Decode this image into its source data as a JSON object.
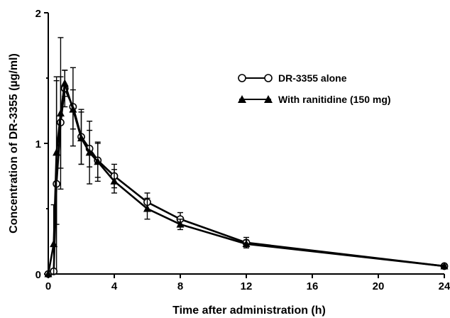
{
  "chart_data": {
    "type": "line",
    "title": "",
    "xlabel": "Time after administration (h)",
    "ylabel": "Concentration of DR-3355 (µg/ml)",
    "xlim": [
      0,
      24
    ],
    "ylim": [
      0,
      2
    ],
    "xticks": [
      0,
      4,
      8,
      12,
      16,
      20,
      24
    ],
    "xtick_labels": [
      "0",
      "4",
      "8",
      "12",
      "16",
      "20",
      "24"
    ],
    "yticks": [
      0,
      1,
      2
    ],
    "ytick_labels": [
      "0",
      "1",
      "2"
    ],
    "grid": false,
    "legend_position": "top-right",
    "series": [
      {
        "name": "DR-3355 alone",
        "marker": "open-circle",
        "x": [
          0,
          0.33,
          0.5,
          0.75,
          1,
          1.5,
          2,
          2.5,
          3,
          4,
          6,
          8,
          12,
          24
        ],
        "y": [
          0,
          0.02,
          0.69,
          1.16,
          1.42,
          1.28,
          1.05,
          0.96,
          0.87,
          0.75,
          0.55,
          0.42,
          0.24,
          0.06
        ],
        "error": [
          0,
          0.02,
          0.82,
          0.35,
          0.14,
          0.3,
          0.21,
          0.14,
          0.13,
          0.09,
          0.07,
          0.05,
          0.04,
          0.01
        ]
      },
      {
        "name": "With ranitidine (150 mg)",
        "marker": "filled-triangle",
        "x": [
          0,
          0.33,
          0.5,
          0.75,
          1,
          1.5,
          2,
          2.5,
          3,
          4,
          6,
          8,
          12,
          24
        ],
        "y": [
          0,
          0.23,
          0.93,
          1.23,
          1.46,
          1.26,
          1.04,
          0.93,
          0.86,
          0.71,
          0.5,
          0.38,
          0.23,
          0.06
        ],
        "error": [
          0,
          0.3,
          0.55,
          0.58,
          0.1,
          0.15,
          0.2,
          0.24,
          0.15,
          0.09,
          0.08,
          0.04,
          0.03,
          0.01
        ]
      }
    ]
  }
}
